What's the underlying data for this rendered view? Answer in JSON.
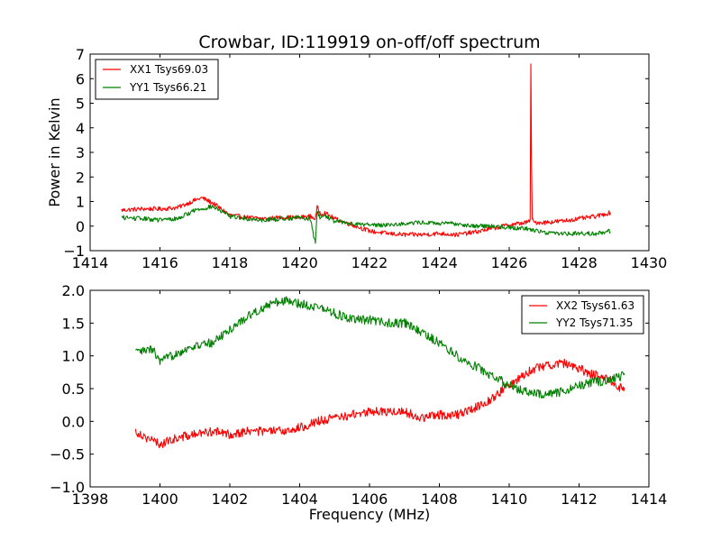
{
  "chart_data": [
    {
      "type": "line",
      "title": "Crowbar, ID:119919 on-off/off spectrum",
      "xlabel": "",
      "ylabel": "Power in Kelvin",
      "xlim": [
        1414,
        1430
      ],
      "ylim": [
        -1,
        7
      ],
      "xticks": [
        "1414",
        "1416",
        "1418",
        "1420",
        "1422",
        "1424",
        "1426",
        "1428",
        "1430"
      ],
      "yticks": [
        "−1",
        "0",
        "1",
        "2",
        "3",
        "4",
        "5",
        "6",
        "7"
      ],
      "legend_position": "top-left",
      "series": [
        {
          "name": "XX1 Tsys69.03",
          "color": "#ff0000",
          "x": [
            1414.9,
            1415.5,
            1416.0,
            1416.5,
            1417.0,
            1417.2,
            1417.5,
            1418.0,
            1418.5,
            1419.0,
            1419.5,
            1420.0,
            1420.3,
            1420.45,
            1420.5,
            1420.6,
            1420.7,
            1421.0,
            1421.5,
            1422.0,
            1422.5,
            1423.0,
            1423.5,
            1424.0,
            1424.5,
            1425.0,
            1425.5,
            1426.0,
            1426.5,
            1426.6,
            1426.62,
            1426.65,
            1426.7,
            1427.0,
            1427.5,
            1428.0,
            1428.5,
            1428.9
          ],
          "y": [
            0.65,
            0.7,
            0.7,
            0.75,
            1.05,
            1.15,
            0.95,
            0.45,
            0.35,
            0.3,
            0.35,
            0.35,
            0.4,
            0.3,
            0.75,
            0.5,
            0.55,
            0.3,
            0.05,
            -0.2,
            -0.3,
            -0.35,
            -0.35,
            -0.3,
            -0.35,
            -0.25,
            -0.1,
            0.05,
            0.15,
            0.2,
            6.6,
            0.3,
            0.15,
            0.15,
            0.2,
            0.3,
            0.4,
            0.55
          ]
        },
        {
          "name": "YY1 Tsys66.21",
          "color": "#008000",
          "x": [
            1414.9,
            1415.5,
            1416.0,
            1416.5,
            1417.0,
            1417.5,
            1418.0,
            1418.5,
            1419.0,
            1419.5,
            1420.0,
            1420.3,
            1420.45,
            1420.5,
            1420.6,
            1420.7,
            1421.0,
            1421.5,
            1422.0,
            1422.5,
            1423.0,
            1423.5,
            1424.0,
            1424.5,
            1425.0,
            1425.5,
            1426.0,
            1426.5,
            1427.0,
            1427.5,
            1428.0,
            1428.5,
            1428.9
          ],
          "y": [
            0.35,
            0.3,
            0.25,
            0.3,
            0.65,
            0.8,
            0.4,
            0.3,
            0.25,
            0.3,
            0.35,
            0.3,
            -0.7,
            0.6,
            0.3,
            0.45,
            0.2,
            0.1,
            0.05,
            0.05,
            0.1,
            0.15,
            0.1,
            0.1,
            0.0,
            0.0,
            -0.05,
            -0.1,
            -0.25,
            -0.3,
            -0.3,
            -0.3,
            -0.2
          ]
        }
      ]
    },
    {
      "type": "line",
      "title": "",
      "xlabel": "Frequency (MHz)",
      "ylabel": "",
      "xlim": [
        1398,
        1414
      ],
      "ylim": [
        -1.0,
        2.0
      ],
      "xticks": [
        "1398",
        "1400",
        "1402",
        "1404",
        "1406",
        "1408",
        "1410",
        "1412",
        "1414"
      ],
      "yticks": [
        "−1.0",
        "−0.5",
        "0.0",
        "0.5",
        "1.0",
        "1.5",
        "2.0"
      ],
      "legend_position": "top-right",
      "series": [
        {
          "name": "XX2 Tsys61.63",
          "color": "#ff0000",
          "x": [
            1399.3,
            1399.8,
            1400.0,
            1400.5,
            1401.0,
            1401.5,
            1402.0,
            1402.5,
            1403.0,
            1403.5,
            1404.0,
            1404.5,
            1405.0,
            1405.5,
            1406.0,
            1406.5,
            1407.0,
            1407.5,
            1408.0,
            1408.5,
            1409.0,
            1409.5,
            1410.0,
            1410.5,
            1411.0,
            1411.5,
            1412.0,
            1412.5,
            1413.0,
            1413.3
          ],
          "y": [
            -0.15,
            -0.3,
            -0.35,
            -0.25,
            -0.2,
            -0.15,
            -0.2,
            -0.15,
            -0.15,
            -0.15,
            -0.1,
            0.0,
            0.05,
            0.1,
            0.15,
            0.15,
            0.15,
            0.05,
            0.1,
            0.1,
            0.2,
            0.35,
            0.55,
            0.75,
            0.85,
            0.9,
            0.8,
            0.7,
            0.6,
            0.45
          ]
        },
        {
          "name": "YY2 Tsys71.35",
          "color": "#008000",
          "x": [
            1399.3,
            1399.8,
            1400.0,
            1400.5,
            1401.0,
            1401.5,
            1402.0,
            1402.5,
            1403.0,
            1403.5,
            1404.0,
            1404.5,
            1405.0,
            1405.5,
            1406.0,
            1406.5,
            1407.0,
            1407.5,
            1408.0,
            1408.5,
            1409.0,
            1409.5,
            1410.0,
            1410.5,
            1411.0,
            1411.5,
            1412.0,
            1412.5,
            1413.0,
            1413.3
          ],
          "y": [
            1.05,
            1.1,
            0.9,
            1.05,
            1.15,
            1.2,
            1.4,
            1.6,
            1.75,
            1.85,
            1.8,
            1.75,
            1.65,
            1.55,
            1.55,
            1.5,
            1.5,
            1.35,
            1.2,
            1.0,
            0.85,
            0.7,
            0.55,
            0.45,
            0.4,
            0.45,
            0.55,
            0.6,
            0.65,
            0.7
          ]
        }
      ]
    }
  ]
}
